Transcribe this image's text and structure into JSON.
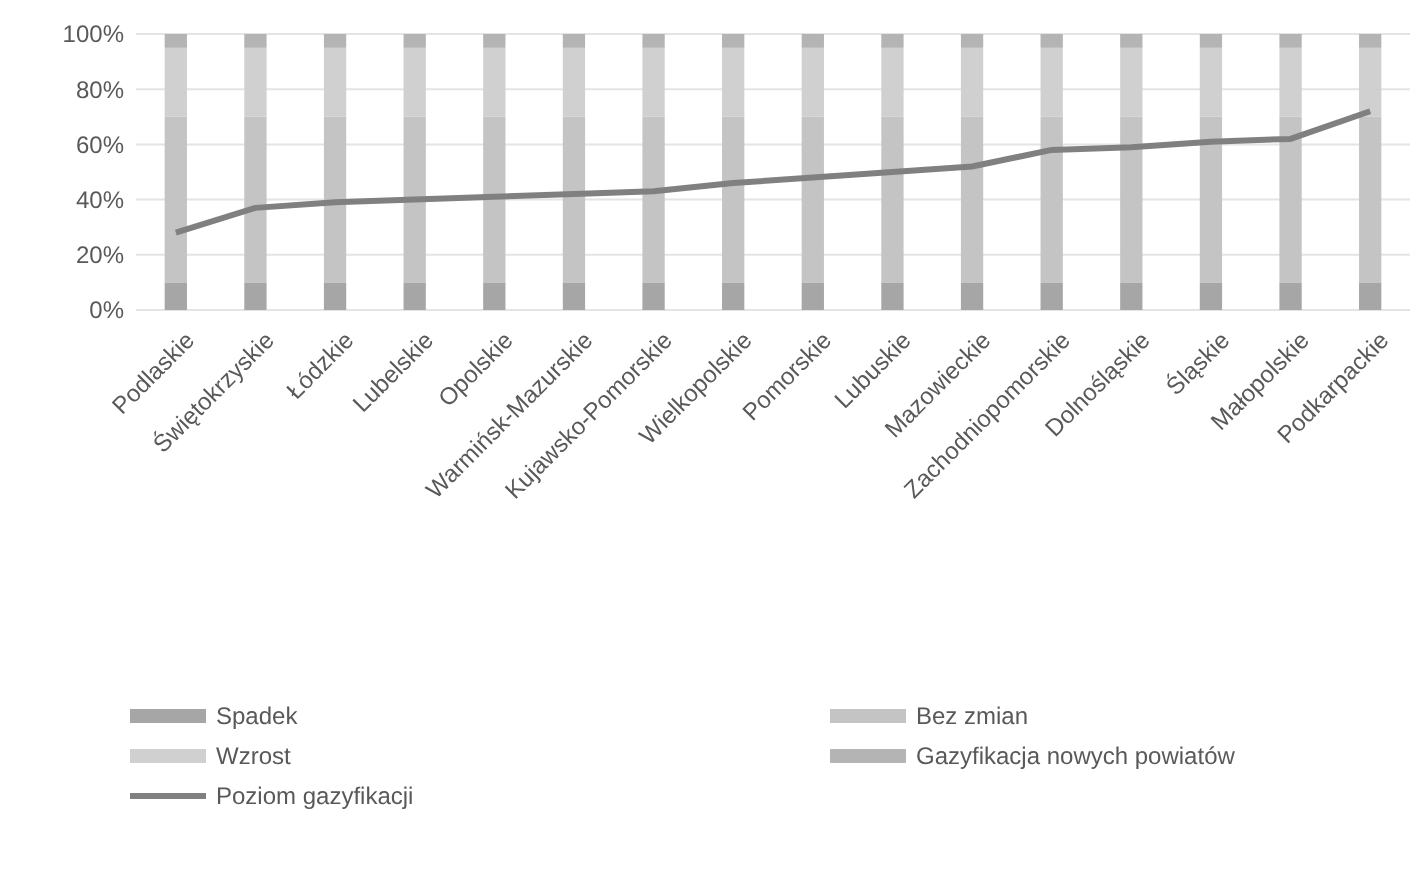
{
  "chart_data": {
    "type": "bar",
    "stacked": true,
    "categories": [
      "Podlaskie",
      "Świętokrzyskie",
      "Łódzkie",
      "Lubelskie",
      "Opolskie",
      "Warmińsk-Mazurskie",
      "Kujawsko-Pomorskie",
      "Wielkopolskie",
      "Pomorskie",
      "Lubuskie",
      "Mazowieckie",
      "Zachodniopomorskie",
      "Dolnośląskie",
      "Śląskie",
      "Małopolskie",
      "Podkarpackie"
    ],
    "series": [
      {
        "name": "Spadek",
        "color": "#a6a6a6",
        "values": [
          10,
          10,
          10,
          10,
          10,
          10,
          10,
          10,
          10,
          10,
          10,
          10,
          10,
          10,
          10,
          10
        ]
      },
      {
        "name": "Bez zmian",
        "color": "#c4c4c4",
        "values": [
          60,
          60,
          60,
          60,
          60,
          60,
          60,
          60,
          60,
          60,
          60,
          60,
          60,
          60,
          60,
          60
        ]
      },
      {
        "name": "Wzrost",
        "color": "#d0d0d0",
        "values": [
          25,
          25,
          25,
          25,
          25,
          25,
          25,
          25,
          25,
          25,
          25,
          25,
          25,
          25,
          25,
          25
        ]
      },
      {
        "name": "Gazyfikacja nowych powiatów",
        "color": "#b4b4b4",
        "values": [
          5,
          5,
          5,
          5,
          5,
          5,
          5,
          5,
          5,
          5,
          5,
          5,
          5,
          5,
          5,
          5
        ]
      },
      {
        "name": "Poziom gazyfikacji",
        "type": "line",
        "color": "#808080",
        "values": [
          28,
          37,
          39,
          40,
          41,
          42,
          43,
          46,
          48,
          50,
          52,
          58,
          59,
          61,
          62,
          72
        ]
      }
    ],
    "ylim": [
      0,
      100
    ],
    "yticks": [
      {
        "value": 0,
        "label": "0%"
      },
      {
        "value": 20,
        "label": "20%"
      },
      {
        "value": 40,
        "label": "40%"
      },
      {
        "value": 60,
        "label": "60%"
      },
      {
        "value": 80,
        "label": "80%"
      },
      {
        "value": 100,
        "label": "100%"
      }
    ],
    "grid": "y",
    "legend": "bottom"
  }
}
